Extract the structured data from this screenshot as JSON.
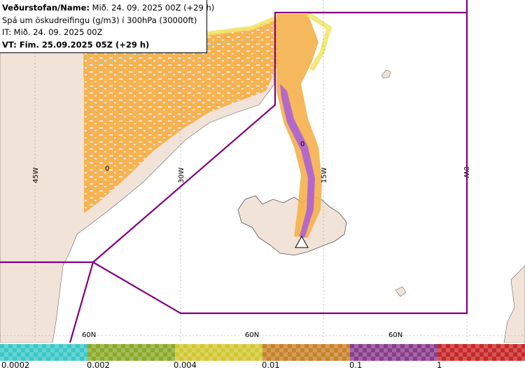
{
  "header": {
    "agency_label": "Veðurstofan/Name:",
    "forecast_name": "Mið. 24. 09. 2025 00Z (+29 h)",
    "description": "Spá um öskudreifingu (g/m3) í 300hPa (30000ft)",
    "issue_time": "IT: Mið. 24. 09. 2025 00Z",
    "valid_time": "VT: Fim. 25.09.2025 05Z (+29 h)"
  },
  "map": {
    "meridian_labels": [
      "45W",
      "30W",
      "15W",
      "0W"
    ],
    "parallel_labels": [
      "60N",
      "60N",
      "60N"
    ],
    "contour_markers": [
      "0",
      "0"
    ],
    "volcano_icon": "volcano-triangle-icon",
    "colors": {
      "land": "#f2e3d8",
      "ocean": "#ffffff",
      "boundary": "#800080",
      "ash_low": "#f5b04a",
      "ash_edge": "#f2e66a",
      "ash_fringe": "#7fd9d9",
      "ash_high": "#b469c8"
    }
  },
  "legend": {
    "ticks": [
      "0.0002",
      "0.002",
      "0.004",
      "0.01",
      "0.1",
      "1"
    ],
    "colors": [
      "#3cc8c8",
      "#8aaa2a",
      "#d2c832",
      "#c8822a",
      "#8a3c8a",
      "#c82828"
    ]
  }
}
